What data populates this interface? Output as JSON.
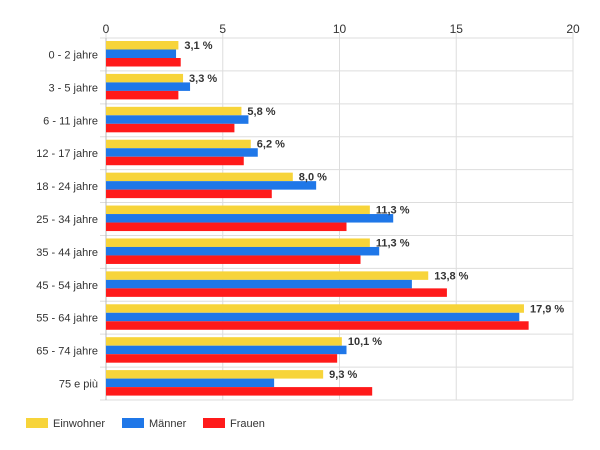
{
  "chart_data": {
    "type": "bar",
    "orientation": "horizontal",
    "title": "",
    "xlabel": "",
    "ylabel": "",
    "xlim": [
      0,
      20
    ],
    "x_ticks": [
      0,
      5,
      10,
      15,
      20
    ],
    "grid": true,
    "legend_position": "bottom-left",
    "categories": [
      "0 - 2 jahre",
      "3 - 5 jahre",
      "6 - 11 jahre",
      "12 - 17 jahre",
      "18 - 24 jahre",
      "25 - 34 jahre",
      "35 - 44 jahre",
      "45 - 54 jahre",
      "55 - 64 jahre",
      "65 - 74 jahre",
      "75 e più"
    ],
    "series": [
      {
        "name": "Einwohner",
        "color": "#f7d43a",
        "values": [
          3.1,
          3.3,
          5.8,
          6.2,
          8.0,
          11.3,
          11.3,
          13.8,
          17.9,
          10.1,
          9.3
        ]
      },
      {
        "name": "Männer",
        "color": "#1f77e8",
        "values": [
          3.0,
          3.6,
          6.1,
          6.5,
          9.0,
          12.3,
          11.7,
          13.1,
          17.7,
          10.3,
          7.2
        ]
      },
      {
        "name": "Frauen",
        "color": "#ff1a1a",
        "values": [
          3.2,
          3.1,
          5.5,
          5.9,
          7.1,
          10.3,
          10.9,
          14.6,
          18.1,
          9.9,
          11.4
        ]
      }
    ],
    "data_labels": [
      "3,1 %",
      "3,3 %",
      "5,8 %",
      "6,2 %",
      "8,0 %",
      "11,3 %",
      "11,3 %",
      "13,8 %",
      "17,9 %",
      "10,1 %",
      "9,3 %"
    ]
  }
}
